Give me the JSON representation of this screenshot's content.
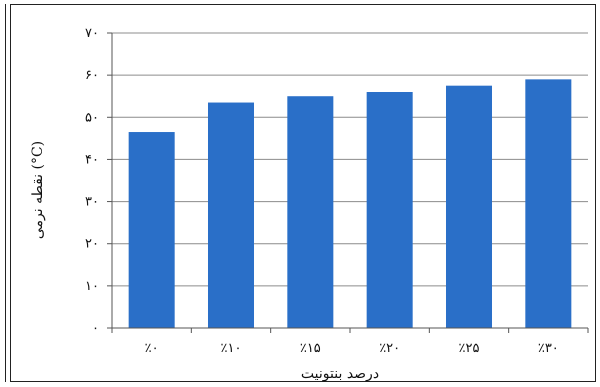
{
  "chart_data": {
    "type": "bar",
    "categories": [
      "٪۰",
      "٪۱۰",
      "٪۱۵",
      "٪۲۰",
      "٪۲۵",
      "٪۳۰"
    ],
    "values": [
      46.5,
      53.5,
      55.0,
      56.0,
      57.5,
      59.0
    ],
    "ylim": [
      0,
      70
    ],
    "yticks": [
      0,
      10,
      20,
      30,
      40,
      50,
      60,
      70
    ],
    "ytick_labels": [
      "۰",
      "۱۰",
      "۲۰",
      "۳۰",
      "۴۰",
      "۵۰",
      "۶۰",
      "۷۰"
    ],
    "xlabel": "درصد بنتونیت",
    "ylabel": "نقطه نرمی (°C)",
    "grid": true,
    "bar_color": "#2a6fc8",
    "grid_color": "#8c8c8c"
  }
}
